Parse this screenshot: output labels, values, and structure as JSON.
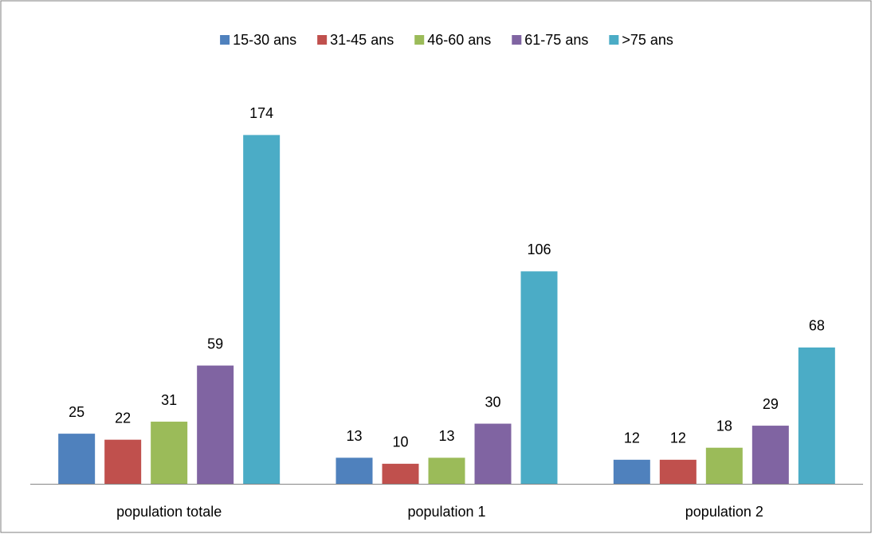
{
  "chart_data": {
    "type": "bar",
    "categories": [
      "population totale",
      "population 1",
      "population 2"
    ],
    "series": [
      {
        "name": "15-30 ans",
        "color": "#4f81bd",
        "values": [
          25,
          13,
          12
        ]
      },
      {
        "name": "31-45 ans",
        "color": "#c0504d",
        "values": [
          22,
          10,
          12
        ]
      },
      {
        "name": "46-60 ans",
        "color": "#9bbb59",
        "values": [
          31,
          13,
          18
        ]
      },
      {
        "name": "61-75 ans",
        "color": "#8064a2",
        "values": [
          59,
          30,
          29
        ]
      },
      {
        "name": ">75 ans",
        "color": "#4bacc6",
        "values": [
          174,
          106,
          68
        ]
      }
    ],
    "ylim": [
      0,
      200
    ],
    "legend": "top"
  }
}
